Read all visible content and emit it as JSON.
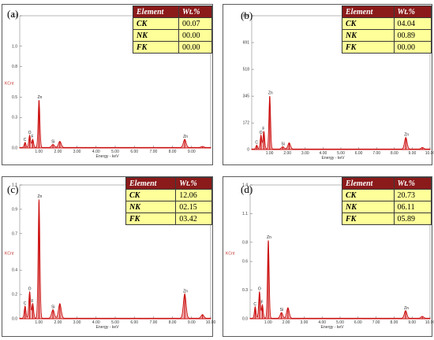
{
  "colors": {
    "spectrum": "#cc1111",
    "fill": "#e88c8c",
    "header_bg": "#8b1a1a",
    "cell_bg": "#ffff99"
  },
  "table_headers": {
    "element": "Element",
    "wt": "Wt.%"
  },
  "chart_data": [
    {
      "type": "line",
      "panel": "(a)",
      "xlabel": "Energy - keV",
      "ylabel": "KCnt",
      "xlim": [
        0,
        10
      ],
      "xticks": [
        "1.00",
        "2.00",
        "3.00",
        "4.00",
        "5.00",
        "6.00",
        "7.00",
        "8.00",
        "9.00"
      ],
      "ylim": [
        0,
        1.3
      ],
      "yticks": [
        "0.0",
        "0.3",
        "0.5",
        "0.8",
        "1.0",
        "1.3"
      ],
      "yvals": [
        0.0,
        0.3,
        0.5,
        0.8,
        1.0,
        1.3
      ],
      "peaks": [
        {
          "label": "C",
          "x": 0.28,
          "y": 0.05
        },
        {
          "label": "O",
          "x": 0.52,
          "y": 0.12
        },
        {
          "label": "F",
          "x": 0.68,
          "y": 0.08
        },
        {
          "label": "Zn",
          "x": 1.01,
          "y": 0.47
        },
        {
          "label": "Si",
          "x": 1.74,
          "y": 0.03
        },
        {
          "label": "",
          "x": 2.1,
          "y": 0.06
        },
        {
          "label": "Zn",
          "x": 8.64,
          "y": 0.08
        },
        {
          "label": "",
          "x": 9.57,
          "y": 0.01
        }
      ],
      "table": [
        {
          "element": "CK",
          "wt": "00.07"
        },
        {
          "element": "NK",
          "wt": "00.00"
        },
        {
          "element": "FK",
          "wt": "00.00"
        }
      ]
    },
    {
      "type": "line",
      "panel": "(b)",
      "xlabel": "Energy - keV",
      "ylabel": "",
      "xlim": [
        0,
        10
      ],
      "xticks": [
        "1.00",
        "2.00",
        "3.00",
        "4.00",
        "5.00",
        "6.00",
        "7.00",
        "8.00",
        "9.00",
        "10.00"
      ],
      "ylim": [
        0,
        864
      ],
      "yticks": [
        "0",
        "172",
        "345",
        "518",
        "691",
        "864"
      ],
      "yvals": [
        0,
        172,
        345,
        518,
        691,
        864
      ],
      "peaks": [
        {
          "label": "C",
          "x": 0.28,
          "y": 25
        },
        {
          "label": "O",
          "x": 0.52,
          "y": 90
        },
        {
          "label": "F",
          "x": 0.68,
          "y": 115
        },
        {
          "label": "Zn",
          "x": 1.01,
          "y": 345
        },
        {
          "label": "Si",
          "x": 1.74,
          "y": 15
        },
        {
          "label": "",
          "x": 2.1,
          "y": 40
        },
        {
          "label": "Zn",
          "x": 8.64,
          "y": 75
        },
        {
          "label": "",
          "x": 9.57,
          "y": 10
        }
      ],
      "table": [
        {
          "element": "CK",
          "wt": "04.04"
        },
        {
          "element": "NK",
          "wt": "00.89"
        },
        {
          "element": "FK",
          "wt": "00.00"
        }
      ]
    },
    {
      "type": "line",
      "panel": "(c)",
      "xlabel": "Energy - keV",
      "ylabel": "KCnt",
      "xlim": [
        0,
        10
      ],
      "xticks": [
        "1.00",
        "2.00",
        "3.00",
        "4.00",
        "5.00",
        "6.00",
        "7.00",
        "8.00",
        "9.00",
        "10.00"
      ],
      "ylim": [
        0,
        1.1
      ],
      "yticks": [
        "0.0",
        "0.2",
        "0.4",
        "0.7",
        "0.9",
        "1.1"
      ],
      "yvals": [
        0.0,
        0.2,
        0.4,
        0.7,
        0.9,
        1.1
      ],
      "peaks": [
        {
          "label": "C",
          "x": 0.28,
          "y": 0.1
        },
        {
          "label": "O",
          "x": 0.52,
          "y": 0.22
        },
        {
          "label": "F",
          "x": 0.68,
          "y": 0.12
        },
        {
          "label": "Zn",
          "x": 1.01,
          "y": 0.98
        },
        {
          "label": "Si",
          "x": 1.74,
          "y": 0.07
        },
        {
          "label": "",
          "x": 2.1,
          "y": 0.12
        },
        {
          "label": "Zn",
          "x": 8.64,
          "y": 0.2
        },
        {
          "label": "",
          "x": 9.57,
          "y": 0.03
        }
      ],
      "table": [
        {
          "element": "CK",
          "wt": "12.06"
        },
        {
          "element": "NK",
          "wt": "02.15"
        },
        {
          "element": "FK",
          "wt": "03.42"
        }
      ]
    },
    {
      "type": "line",
      "panel": "(d)",
      "xlabel": "Energy - keV",
      "ylabel": "KCnt",
      "xlim": [
        0,
        10
      ],
      "xticks": [
        "1.00",
        "2.00",
        "3.00",
        "4.00",
        "5.00",
        "6.00",
        "7.00",
        "8.00",
        "9.00",
        "10.00"
      ],
      "ylim": [
        0,
        1.4
      ],
      "yticks": [
        "0.0",
        "0.3",
        "0.6",
        "0.8",
        "1.1",
        "1.4"
      ],
      "yvals": [
        0.0,
        0.3,
        0.6,
        0.8,
        1.1,
        1.4
      ],
      "peaks": [
        {
          "label": "C",
          "x": 0.28,
          "y": 0.12
        },
        {
          "label": "O",
          "x": 0.52,
          "y": 0.28
        },
        {
          "label": "F",
          "x": 0.68,
          "y": 0.14
        },
        {
          "label": "Zn",
          "x": 1.01,
          "y": 0.82
        },
        {
          "label": "Si",
          "x": 1.74,
          "y": 0.06
        },
        {
          "label": "",
          "x": 2.1,
          "y": 0.11
        },
        {
          "label": "Zn",
          "x": 8.64,
          "y": 0.08
        },
        {
          "label": "",
          "x": 9.57,
          "y": 0.02
        }
      ],
      "table": [
        {
          "element": "CK",
          "wt": "20.73"
        },
        {
          "element": "NK",
          "wt": "06.11"
        },
        {
          "element": "FK",
          "wt": "05.89"
        }
      ]
    }
  ]
}
